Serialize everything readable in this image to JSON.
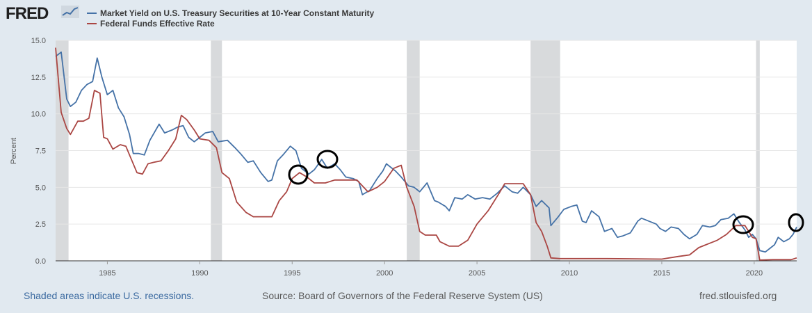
{
  "header": {
    "logo_text": "FRED",
    "series1_label": "Market Yield on U.S. Treasury Securities at 10-Year Constant Maturity",
    "series2_label": "Federal Funds Effective Rate"
  },
  "footer": {
    "recession_note": "Shaded areas indicate U.S. recessions.",
    "source": "Source: Board of Governors of the Federal Reserve System (US)",
    "site": "fred.stlouisfed.org"
  },
  "colors": {
    "series1": "#4572a7",
    "series2": "#aa4643",
    "recession": "#d8dadc",
    "background": "#e1e9f0"
  },
  "chart_data": {
    "type": "line",
    "title": "",
    "xlabel": "",
    "ylabel": "Percent",
    "xlim": [
      1982.2,
      2022.3
    ],
    "ylim": [
      0,
      15
    ],
    "yticks": [
      "0.0",
      "2.5",
      "5.0",
      "7.5",
      "10.0",
      "12.5",
      "15.0"
    ],
    "xticks": [
      "1985",
      "1990",
      "1995",
      "2000",
      "2005",
      "2010",
      "2015",
      "2020"
    ],
    "recessions": [
      [
        1981.5,
        1982.9
      ],
      [
        1990.6,
        1991.2
      ],
      [
        2001.2,
        2001.9
      ],
      [
        2007.9,
        2009.5
      ],
      [
        2020.1,
        2020.3
      ]
    ],
    "series": [
      {
        "name": "Market Yield on U.S. Treasury Securities at 10-Year Constant Maturity",
        "x": [
          1982.2,
          1982.5,
          1982.8,
          1983.0,
          1983.3,
          1983.6,
          1983.9,
          1984.2,
          1984.45,
          1984.7,
          1985.0,
          1985.3,
          1985.6,
          1985.9,
          1986.2,
          1986.4,
          1986.7,
          1987.0,
          1987.3,
          1987.8,
          1988.1,
          1988.5,
          1988.8,
          1989.1,
          1989.4,
          1989.7,
          1990.0,
          1990.3,
          1990.7,
          1991.0,
          1991.5,
          1991.9,
          1992.2,
          1992.6,
          1992.9,
          1993.3,
          1993.7,
          1993.9,
          1994.2,
          1994.5,
          1994.9,
          1995.2,
          1995.5,
          1995.9,
          1996.2,
          1996.6,
          1996.9,
          1997.3,
          1997.6,
          1997.9,
          1998.3,
          1998.6,
          1998.8,
          1999.2,
          1999.6,
          1999.9,
          2000.1,
          2000.6,
          2000.9,
          2001.3,
          2001.6,
          2001.9,
          2002.3,
          2002.7,
          2002.9,
          2003.3,
          2003.5,
          2003.8,
          2004.2,
          2004.5,
          2004.9,
          2005.3,
          2005.7,
          2006.1,
          2006.5,
          2006.9,
          2007.2,
          2007.5,
          2007.9,
          2008.2,
          2008.5,
          2008.9,
          2009.0,
          2009.4,
          2009.7,
          2010.1,
          2010.4,
          2010.7,
          2010.9,
          2011.2,
          2011.6,
          2011.9,
          2012.3,
          2012.6,
          2012.9,
          2013.3,
          2013.7,
          2013.9,
          2014.3,
          2014.7,
          2014.9,
          2015.2,
          2015.5,
          2015.9,
          2016.2,
          2016.5,
          2016.9,
          2017.2,
          2017.6,
          2017.9,
          2018.2,
          2018.6,
          2018.9,
          2019.2,
          2019.5,
          2019.7,
          2019.9,
          2020.1,
          2020.3,
          2020.6,
          2020.9,
          2021.1,
          2021.3,
          2021.6,
          2021.9,
          2022.1,
          2022.3
        ],
        "values": [
          13.9,
          14.2,
          11.0,
          10.5,
          10.8,
          11.6,
          12.0,
          12.2,
          13.8,
          12.5,
          11.3,
          11.6,
          10.4,
          9.8,
          8.6,
          7.3,
          7.3,
          7.2,
          8.2,
          9.3,
          8.7,
          8.9,
          9.1,
          9.2,
          8.4,
          8.1,
          8.4,
          8.7,
          8.8,
          8.1,
          8.2,
          7.7,
          7.3,
          6.7,
          6.8,
          6.0,
          5.4,
          5.5,
          6.8,
          7.2,
          7.8,
          7.5,
          6.3,
          5.9,
          6.2,
          6.9,
          6.3,
          6.6,
          6.2,
          5.7,
          5.6,
          5.4,
          4.5,
          4.8,
          5.6,
          6.1,
          6.6,
          6.1,
          5.7,
          5.1,
          5.0,
          4.7,
          5.3,
          4.1,
          4.0,
          3.7,
          3.4,
          4.3,
          4.2,
          4.5,
          4.2,
          4.3,
          4.2,
          4.6,
          5.1,
          4.7,
          4.6,
          5.0,
          4.5,
          3.7,
          4.1,
          3.6,
          2.4,
          3.0,
          3.5,
          3.7,
          3.8,
          2.7,
          2.6,
          3.4,
          3.0,
          2.0,
          2.2,
          1.6,
          1.7,
          1.9,
          2.7,
          2.9,
          2.7,
          2.5,
          2.2,
          2.0,
          2.3,
          2.2,
          1.8,
          1.5,
          1.8,
          2.4,
          2.3,
          2.4,
          2.8,
          2.9,
          3.2,
          2.6,
          2.1,
          1.6,
          1.8,
          1.5,
          0.7,
          0.6,
          0.9,
          1.1,
          1.6,
          1.3,
          1.5,
          1.8,
          2.3
        ]
      },
      {
        "name": "Federal Funds Effective Rate",
        "x": [
          1982.2,
          1982.5,
          1982.8,
          1983.0,
          1983.4,
          1983.7,
          1984.0,
          1984.3,
          1984.6,
          1984.8,
          1985.0,
          1985.3,
          1985.7,
          1986.0,
          1986.3,
          1986.6,
          1986.9,
          1987.2,
          1987.5,
          1987.9,
          1988.3,
          1988.7,
          1989.0,
          1989.3,
          1989.7,
          1990.0,
          1990.5,
          1990.9,
          1991.2,
          1991.6,
          1992.0,
          1992.5,
          1992.9,
          1993.5,
          1993.9,
          1994.3,
          1994.7,
          1995.0,
          1995.4,
          1995.8,
          1996.2,
          1996.8,
          1997.3,
          1997.9,
          1998.5,
          1998.8,
          1999.1,
          1999.6,
          2000.0,
          2000.5,
          2000.9,
          2001.2,
          2001.6,
          2001.9,
          2002.2,
          2002.8,
          2003.0,
          2003.5,
          2004.0,
          2004.5,
          2005.0,
          2005.6,
          2006.2,
          2006.5,
          2007.0,
          2007.5,
          2007.9,
          2008.2,
          2008.5,
          2008.8,
          2009.0,
          2009.5,
          2010.0,
          2012.0,
          2015.0,
          2015.9,
          2016.5,
          2017.0,
          2017.5,
          2018.0,
          2018.5,
          2019.0,
          2019.5,
          2019.9,
          2020.1,
          2020.3,
          2021.0,
          2022.0,
          2022.3
        ],
        "values": [
          14.5,
          10.1,
          9.0,
          8.6,
          9.5,
          9.5,
          9.7,
          11.6,
          11.4,
          8.4,
          8.3,
          7.6,
          7.9,
          7.8,
          6.9,
          6.0,
          5.9,
          6.6,
          6.7,
          6.8,
          7.5,
          8.3,
          9.9,
          9.6,
          8.9,
          8.3,
          8.2,
          7.7,
          6.0,
          5.6,
          4.0,
          3.3,
          3.0,
          3.0,
          3.0,
          4.1,
          4.7,
          5.6,
          6.0,
          5.7,
          5.3,
          5.3,
          5.5,
          5.5,
          5.5,
          5.1,
          4.7,
          5.0,
          5.4,
          6.3,
          6.5,
          5.0,
          3.7,
          2.0,
          1.75,
          1.75,
          1.3,
          1.0,
          1.0,
          1.4,
          2.5,
          3.4,
          4.6,
          5.25,
          5.25,
          5.25,
          4.5,
          2.6,
          2.0,
          1.0,
          0.2,
          0.15,
          0.15,
          0.15,
          0.12,
          0.3,
          0.4,
          0.9,
          1.15,
          1.4,
          1.8,
          2.4,
          2.4,
          1.6,
          1.5,
          0.05,
          0.08,
          0.08,
          0.2
        ]
      }
    ]
  }
}
